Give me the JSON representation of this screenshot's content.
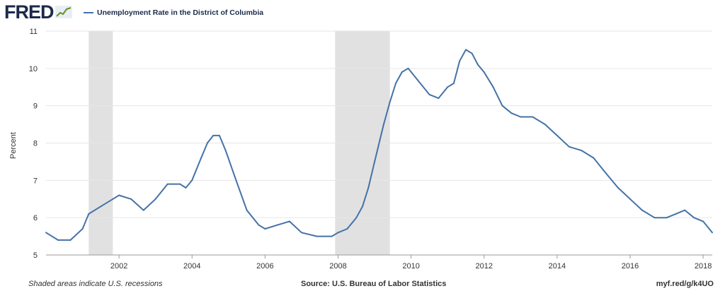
{
  "header": {
    "logo_text": "FRED",
    "logo_icon": "trend-line-icon"
  },
  "chart_data": {
    "type": "line",
    "title": "",
    "xlabel": "",
    "ylabel": "Percent",
    "ylim": [
      5,
      11
    ],
    "xlim": [
      2000.0,
      2018.25
    ],
    "yticks": [
      "5",
      "6",
      "7",
      "8",
      "9",
      "10",
      "11"
    ],
    "xticks": [
      "2002",
      "2004",
      "2006",
      "2008",
      "2010",
      "2012",
      "2014",
      "2016",
      "2018"
    ],
    "grid": true,
    "legend_position": "top-left",
    "recessions": [
      [
        2001.17,
        2001.83
      ],
      [
        2007.92,
        2009.42
      ]
    ],
    "series": [
      {
        "name": "Unemployment Rate in the District of Columbia",
        "color": "#4572a7",
        "x": [
          2000.0,
          2000.33,
          2000.67,
          2001.0,
          2001.17,
          2001.5,
          2001.83,
          2002.0,
          2002.33,
          2002.67,
          2003.0,
          2003.33,
          2003.67,
          2003.83,
          2004.0,
          2004.25,
          2004.42,
          2004.58,
          2004.75,
          2004.92,
          2005.17,
          2005.5,
          2005.83,
          2006.0,
          2006.33,
          2006.67,
          2007.0,
          2007.42,
          2007.83,
          2008.0,
          2008.25,
          2008.5,
          2008.67,
          2008.83,
          2009.0,
          2009.25,
          2009.42,
          2009.58,
          2009.75,
          2009.92,
          2010.17,
          2010.5,
          2010.75,
          2011.0,
          2011.17,
          2011.33,
          2011.5,
          2011.67,
          2011.83,
          2012.0,
          2012.25,
          2012.5,
          2012.75,
          2013.0,
          2013.33,
          2013.67,
          2014.0,
          2014.33,
          2014.67,
          2015.0,
          2015.33,
          2015.67,
          2016.0,
          2016.33,
          2016.67,
          2017.0,
          2017.25,
          2017.5,
          2017.75,
          2018.0,
          2018.25
        ],
        "values": [
          5.6,
          5.4,
          5.4,
          5.7,
          6.1,
          6.3,
          6.5,
          6.6,
          6.5,
          6.2,
          6.5,
          6.9,
          6.9,
          6.8,
          7.0,
          7.6,
          8.0,
          8.2,
          8.2,
          7.8,
          7.1,
          6.2,
          5.8,
          5.7,
          5.8,
          5.9,
          5.6,
          5.5,
          5.5,
          5.6,
          5.7,
          6.0,
          6.3,
          6.8,
          7.5,
          8.5,
          9.1,
          9.6,
          9.9,
          10.0,
          9.7,
          9.3,
          9.2,
          9.5,
          9.6,
          10.2,
          10.5,
          10.4,
          10.1,
          9.9,
          9.5,
          9.0,
          8.8,
          8.7,
          8.7,
          8.5,
          8.2,
          7.9,
          7.8,
          7.6,
          7.2,
          6.8,
          6.5,
          6.2,
          6.0,
          6.0,
          6.1,
          6.2,
          6.0,
          5.9,
          5.6
        ]
      }
    ]
  },
  "footer": {
    "note": "Shaded areas indicate U.S. recessions",
    "source": "Source: U.S. Bureau of Labor Statistics",
    "url": "myf.red/g/k4UO"
  }
}
